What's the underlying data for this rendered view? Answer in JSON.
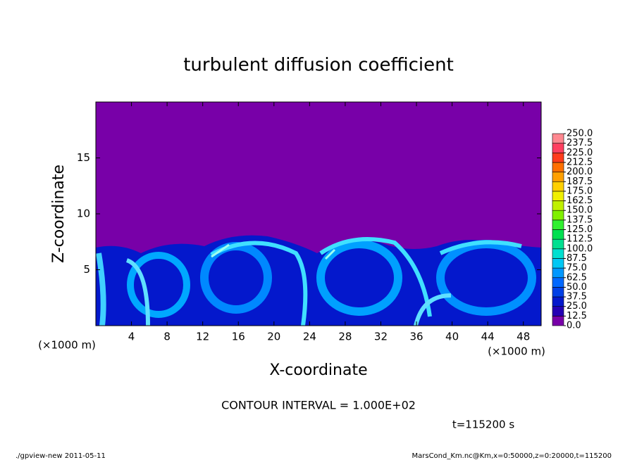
{
  "chart_data": {
    "type": "contour",
    "title": "turbulent diffusion coefficient",
    "xlabel": "X-coordinate",
    "ylabel": "Z-coordinate",
    "xunit": "(×1000 m)",
    "yunit": "(×1000 m)",
    "xlim": [
      0,
      50
    ],
    "xticks": [
      4,
      8,
      12,
      16,
      20,
      24,
      28,
      32,
      36,
      40,
      44,
      48
    ],
    "ylim": [
      0,
      20
    ],
    "yticks": [
      5,
      10,
      15
    ],
    "colorbar": {
      "ticks": [
        {
          "value": 0,
          "label": "0.0"
        },
        {
          "value": 12.5,
          "label": "12.5"
        },
        {
          "value": 25,
          "label": "25.0"
        },
        {
          "value": 37.5,
          "label": "37.5"
        },
        {
          "value": 50,
          "label": "50.0"
        },
        {
          "value": 62.5,
          "label": "62.5"
        },
        {
          "value": 75,
          "label": "75.0"
        },
        {
          "value": 87.5,
          "label": "87.5"
        },
        {
          "value": 100,
          "label": "100.0"
        },
        {
          "value": 112.5,
          "label": "112.5"
        },
        {
          "value": 125,
          "label": "125.0"
        },
        {
          "value": 137.5,
          "label": "137.5"
        },
        {
          "value": 150,
          "label": "150.0"
        },
        {
          "value": 162.5,
          "label": "162.5"
        },
        {
          "value": 175,
          "label": "175.0"
        },
        {
          "value": 187.5,
          "label": "187.5"
        },
        {
          "value": 200,
          "label": "200.0"
        },
        {
          "value": 212.5,
          "label": "212.5"
        },
        {
          "value": 225,
          "label": "225.0"
        },
        {
          "value": 237.5,
          "label": "237.5"
        },
        {
          "value": 250,
          "label": "250.0"
        }
      ],
      "colors": [
        "#7800a8",
        "#2400b4",
        "#0418cc",
        "#0040e6",
        "#0068ff",
        "#0098ff",
        "#00c8f4",
        "#00e0d0",
        "#00e090",
        "#00e050",
        "#30f030",
        "#80f000",
        "#c0f000",
        "#f0f000",
        "#ffd000",
        "#ffa000",
        "#ff7000",
        "#ff3c1c",
        "#ff4060",
        "#ff8890"
      ]
    },
    "contour_interval": "CONTOUR INTERVAL = 1.000E+02",
    "time": "t=115200 s",
    "footer_left": "./gpview-new  2011-05-11",
    "footer_right": "MarsCond_Km.nc@Km,x=0:50000,z=0:20000,t=115200"
  }
}
